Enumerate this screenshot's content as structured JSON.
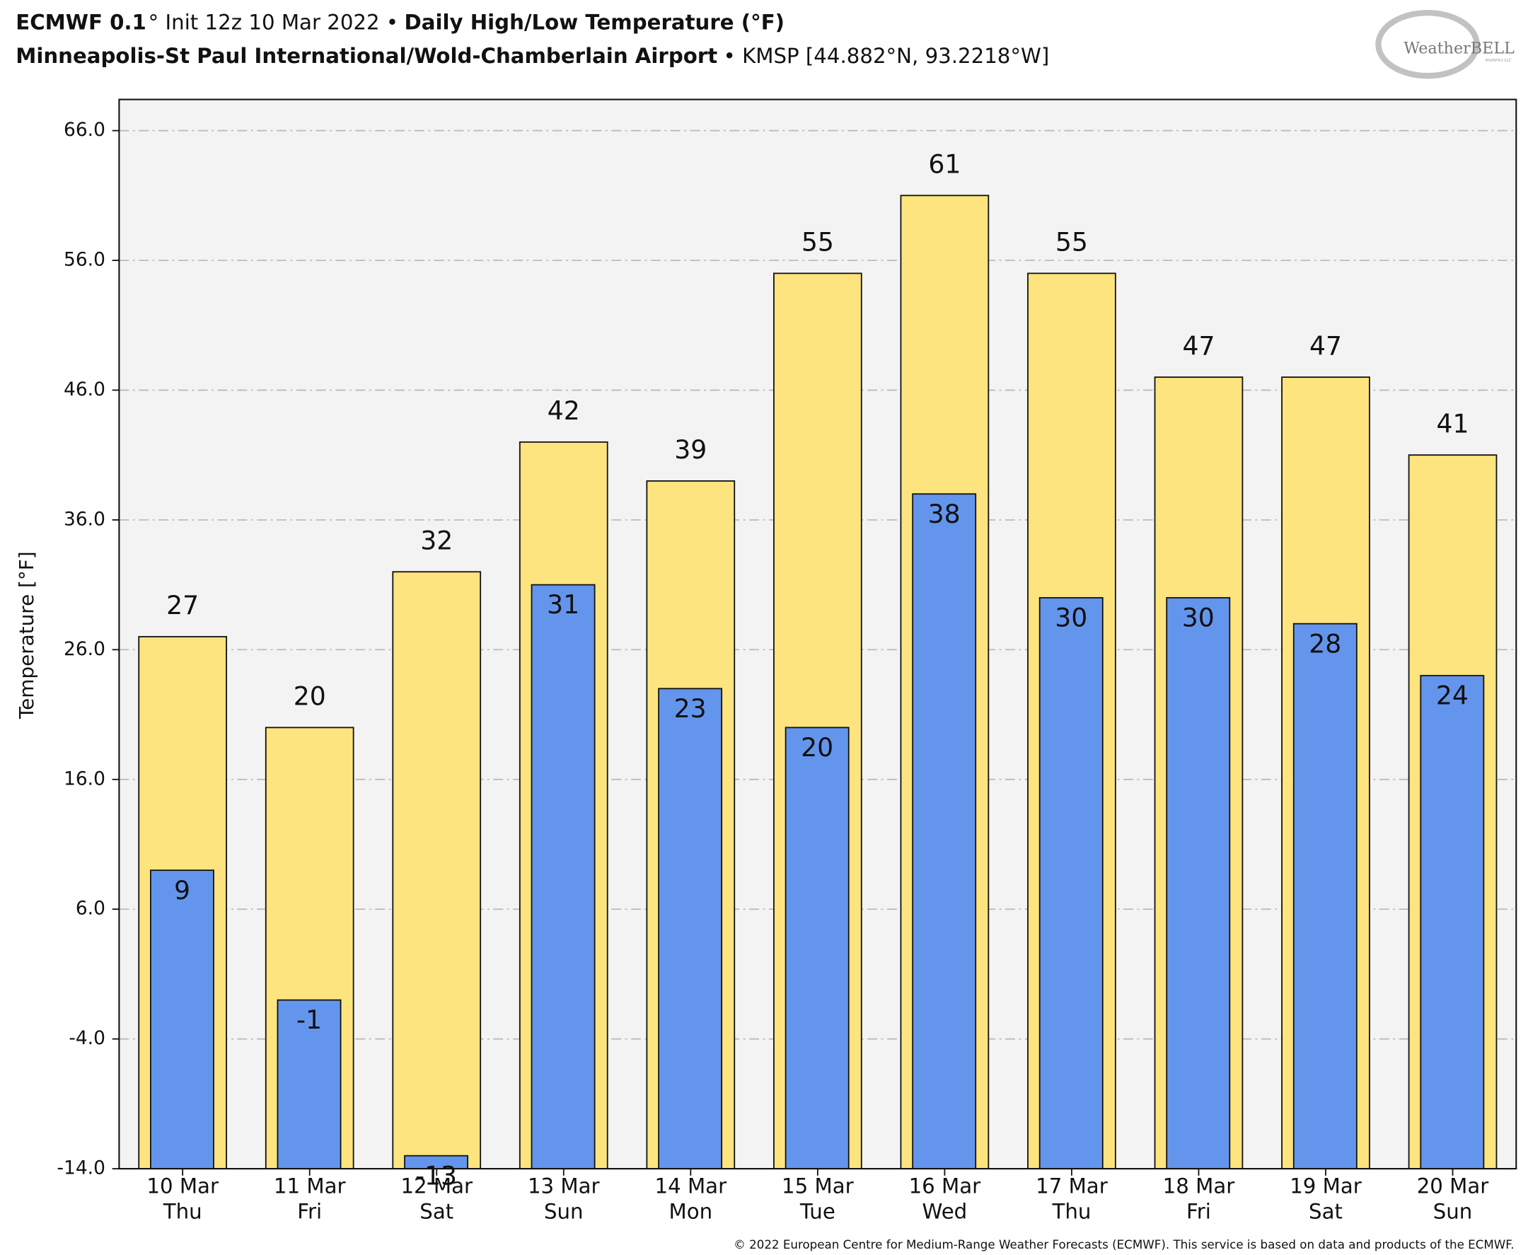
{
  "chart_data": {
    "type": "bar",
    "title": [
      "ECMWF 0.1",
      "° Init 12z 10 Mar 2022 •",
      "Daily High/Low Temperature (°F)"
    ],
    "subtitle": [
      "Minneapolis-St Paul International/Wold-Chamberlain Airport",
      "• KMSP [44.882°N, 93.2218°W]"
    ],
    "logo": "WeatherBELL",
    "logo_sub": "Analytics LLC",
    "y_label": "Temperature [°F]",
    "footer": "© 2022 European Centre for Medium-Range Weather Forecasts (ECMWF). This service is based on data and products of the ECMWF.",
    "categories": [
      "10 Mar",
      "11 Mar",
      "12 Mar",
      "13 Mar",
      "14 Mar",
      "15 Mar",
      "16 Mar",
      "17 Mar",
      "18 Mar",
      "19 Mar",
      "20 Mar"
    ],
    "category_days": [
      "Thu",
      "Fri",
      "Sat",
      "Sun",
      "Mon",
      "Tue",
      "Wed",
      "Thu",
      "Fri",
      "Sat",
      "Sun"
    ],
    "series": [
      {
        "color": "#fde47f",
        "values": [
          27,
          20,
          32,
          42,
          39,
          55,
          61,
          55,
          47,
          47,
          41
        ]
      },
      {
        "color": "#6495ed",
        "values": [
          9,
          -1,
          -13,
          31,
          23,
          20,
          38,
          30,
          30,
          28,
          24
        ]
      }
    ],
    "ylim": [
      -14,
      68.4
    ],
    "yticks": [
      {
        "value": -14,
        "label": "-14.0"
      },
      {
        "value": -4,
        "label": "-4.0"
      },
      {
        "value": 6,
        "label": "6.0"
      },
      {
        "value": 16,
        "label": "16.0"
      },
      {
        "value": 26,
        "label": "26.0"
      },
      {
        "value": 36,
        "label": "36.0"
      },
      {
        "value": 46,
        "label": "46.0"
      },
      {
        "value": 56,
        "label": "56.0"
      },
      {
        "value": 66,
        "label": "66.0"
      }
    ],
    "grid": true,
    "plot_background": "#f4f3f4"
  }
}
